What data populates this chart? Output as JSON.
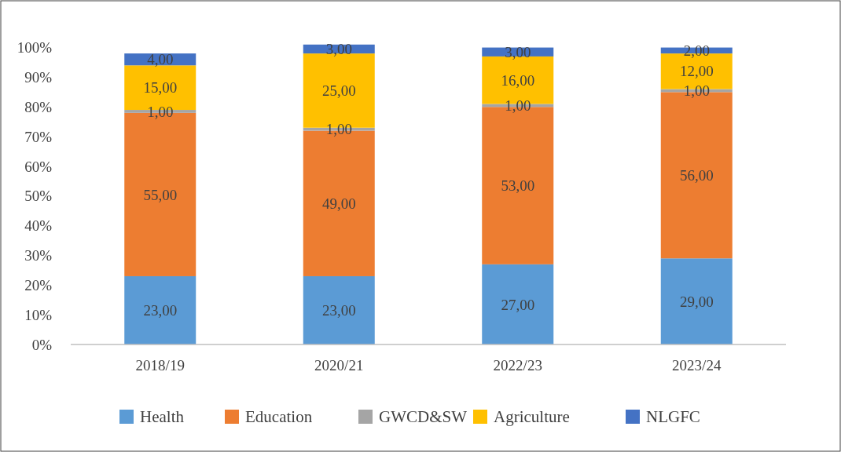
{
  "chart_data": {
    "type": "bar",
    "stacked": true,
    "categories": [
      "2018/19",
      "2020/21",
      "2022/23",
      "2023/24"
    ],
    "series": [
      {
        "name": "Health",
        "color": "#5b9bd5",
        "values": [
          23,
          23,
          27,
          29
        ],
        "value_labels": [
          "23,00",
          "23,00",
          "27,00",
          "29,00"
        ]
      },
      {
        "name": "Education",
        "color": "#ed7d31",
        "values": [
          55,
          49,
          53,
          56
        ],
        "value_labels": [
          "55,00",
          "49,00",
          "53,00",
          "56,00"
        ]
      },
      {
        "name": "GWCD&SW",
        "color": "#a5a5a5",
        "values": [
          1,
          1,
          1,
          1
        ],
        "value_labels": [
          "1,00",
          "1,00",
          "1,00",
          "1,00"
        ]
      },
      {
        "name": "Agriculture",
        "color": "#ffc000",
        "values": [
          15,
          25,
          16,
          12
        ],
        "value_labels": [
          "15,00",
          "25,00",
          "16,00",
          "12,00"
        ]
      },
      {
        "name": "NLGFC",
        "color": "#4472c4",
        "values": [
          4,
          3,
          3,
          2
        ],
        "value_labels": [
          "4,00",
          "3,00",
          "3,00",
          "2,00"
        ]
      }
    ],
    "ylim": [
      0,
      102
    ],
    "yticks": [
      {
        "value": 0,
        "label": "0%"
      },
      {
        "value": 10,
        "label": "10%"
      },
      {
        "value": 20,
        "label": "20%"
      },
      {
        "value": 30,
        "label": "30%"
      },
      {
        "value": 40,
        "label": "40%"
      },
      {
        "value": 50,
        "label": "50%"
      },
      {
        "value": 60,
        "label": "60%"
      },
      {
        "value": 70,
        "label": "70%"
      },
      {
        "value": 80,
        "label": "80%"
      },
      {
        "value": 90,
        "label": "90%"
      },
      {
        "value": 100,
        "label": "100%"
      }
    ],
    "legend": "bottom",
    "grid": false
  }
}
